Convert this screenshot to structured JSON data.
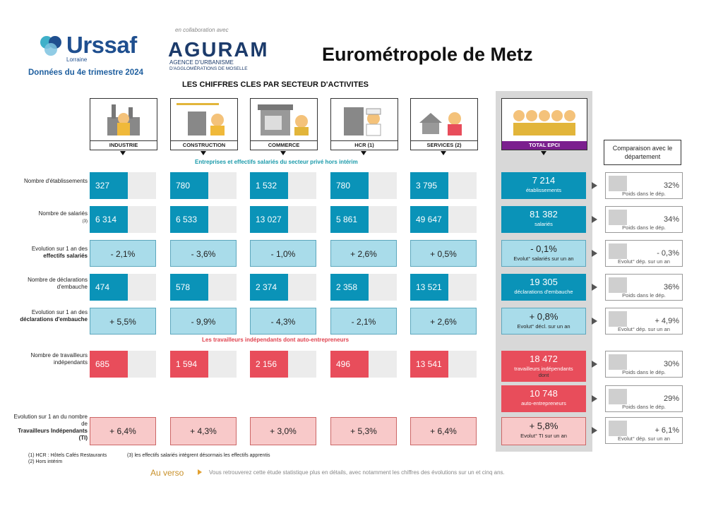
{
  "header": {
    "logo_text": "Urssaf",
    "logo_sub": "Lorraine",
    "date_line": "Données du 4e trimestre 2024",
    "collab": "en collaboration avec",
    "agurams": "AGURAM",
    "agurams_sub_1": "AGENCE D'URBANISME",
    "agurams_sub_2": "D'AGGLOMÉRATIONS DE MOSELLE",
    "title": "Eurométropole de Metz",
    "subtitle": "LES CHIFFRES CLES PAR SECTEUR D'ACTIVITES"
  },
  "sectors": [
    "INDUSTRIE",
    "CONSTRUCTION",
    "COMMERCE",
    "HCR (1)",
    "SERVICES (2)"
  ],
  "total_label": "TOTAL EPCI",
  "comparison_header": "Comparaison avec le département",
  "section1": "Entreprises et effectifs salariés du secteur privé hors intérim",
  "section2": "Les travailleurs indépendants dont auto-entrepreneurs",
  "rows": {
    "etab": {
      "label": "Nombre d'établissements",
      "values": [
        "327",
        "780",
        "1 532",
        "780",
        "3 795"
      ],
      "total": "7 214",
      "total_sub": "établissements",
      "comp_val": "32%",
      "comp_sub": "Poids dans le dép."
    },
    "sal": {
      "label": "Nombre de salariés",
      "note": "(3)",
      "values": [
        "6 314",
        "6 533",
        "13 027",
        "5 861",
        "49 647"
      ],
      "total": "81 382",
      "total_sub": "salariés",
      "comp_val": "34%",
      "comp_sub": "Poids dans le dép."
    },
    "evsal": {
      "label_1": "Evolution sur 1 an des",
      "label_2": "effectifs salariés",
      "values": [
        "- 2,1%",
        "- 3,6%",
        "- 1,0%",
        "+ 2,6%",
        "+ 0,5%"
      ],
      "total": "- 0,1%",
      "total_sub": "Evolut° salariés sur un an",
      "comp_val": "- 0,3%",
      "comp_sub": "Evolut° dép. sur un an"
    },
    "decl": {
      "label": "Nombre de déclarations d'embauche",
      "values": [
        "474",
        "578",
        "2 374",
        "2 358",
        "13 521"
      ],
      "total": "19 305",
      "total_sub": "déclarations d'embauche",
      "comp_val": "36%",
      "comp_sub": "Poids dans le dép."
    },
    "evdecl": {
      "label_1": "Evolution sur 1 an des",
      "label_2": "déclarations d'embauche",
      "values": [
        "+ 5,5%",
        "- 9,9%",
        "- 4,3%",
        "- 2,1%",
        "+ 2,6%"
      ],
      "total": "+ 0,8%",
      "total_sub": "Evolut° décl. sur un an",
      "comp_val": "+ 4,9%",
      "comp_sub": "Evolut° dép. sur un an"
    },
    "ti": {
      "label": "Nombre de travailleurs indépendants",
      "values": [
        "685",
        "1 594",
        "2 156",
        "496",
        "13 541"
      ],
      "total": "18 472",
      "total_sub": "travailleurs indépendants",
      "total_sub2": "dont",
      "comp_val": "30%",
      "comp_sub": "Poids dans le dép."
    },
    "ae": {
      "total": "10 748",
      "total_sub": "auto-entrepreneurs",
      "comp_val": "29%",
      "comp_sub": "Poids dans le dép."
    },
    "evti": {
      "label_1": "Evolution sur 1 an du nombre de",
      "label_2": "Travailleurs Indépendants (TI)",
      "values": [
        "+ 6,4%",
        "+ 4,3%",
        "+ 3,0%",
        "+ 5,3%",
        "+ 6,4%"
      ],
      "total": "+ 5,8%",
      "total_sub": "Evolut° TI sur un an",
      "comp_val": "+ 6,1%",
      "comp_sub": "Evolut° dép. sur un an"
    }
  },
  "footnotes": {
    "n1": "(1) HCR : Hôtels Cafés Restaurants",
    "n2": "(2) Hors intérim",
    "n3": "(3) les effectifs salariés intègrent désormais les effectifs apprentis"
  },
  "verso": {
    "label": "Au verso",
    "text": "Vous retrouverez cette étude statistique plus en détails, avec notamment les chiffres des évolutions sur un et cinq ans."
  }
}
